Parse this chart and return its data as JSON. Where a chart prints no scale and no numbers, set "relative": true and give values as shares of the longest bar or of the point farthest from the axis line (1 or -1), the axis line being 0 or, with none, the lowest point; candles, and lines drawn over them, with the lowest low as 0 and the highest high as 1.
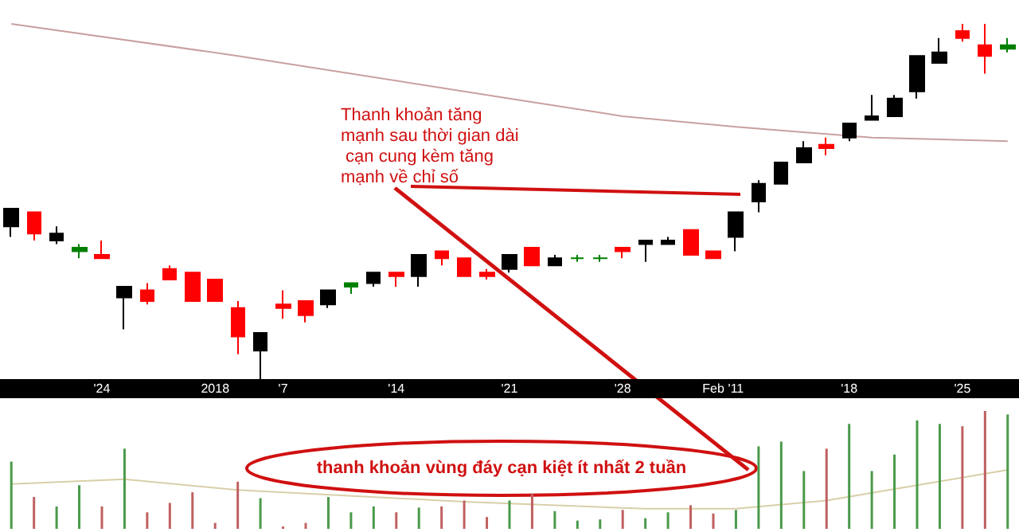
{
  "chart_data": [
    {
      "type": "candlestick",
      "relative": true,
      "tick_labels": "x",
      "grid": false,
      "categories": [
        null,
        null,
        null,
        null,
        "'24",
        null,
        null,
        null,
        null,
        "2018",
        null,
        null,
        "'7",
        null,
        null,
        null,
        null,
        "'14",
        null,
        null,
        null,
        null,
        "'21",
        null,
        null,
        null,
        null,
        "'28",
        null,
        null,
        null,
        "Feb",
        "'11",
        null,
        null,
        null,
        null,
        "'18",
        null,
        null,
        null,
        null,
        "'25",
        null,
        null
      ],
      "ohlc": [
        [
          0.43,
          0.48,
          0.4,
          0.48
        ],
        [
          0.47,
          0.47,
          0.39,
          0.41
        ],
        [
          0.39,
          0.43,
          0.38,
          0.41
        ],
        [
          0.36,
          0.38,
          0.34,
          0.37
        ],
        [
          0.35,
          0.39,
          0.34,
          0.34
        ],
        [
          0.23,
          0.26,
          0.14,
          0.26
        ],
        [
          0.25,
          0.27,
          0.21,
          0.22
        ],
        [
          0.31,
          0.32,
          0.28,
          0.28
        ],
        [
          0.3,
          0.3,
          0.22,
          0.22
        ],
        [
          0.28,
          0.28,
          0.22,
          0.22
        ],
        [
          0.2,
          0.22,
          0.07,
          0.12
        ],
        [
          0.08,
          0.13,
          0,
          0.13
        ],
        [
          0.21,
          0.25,
          0.17,
          0.2
        ],
        [
          0.22,
          0.22,
          0.16,
          0.18
        ],
        [
          0.21,
          0.25,
          0.2,
          0.25
        ],
        [
          0.26,
          0.27,
          0.24,
          0.27
        ],
        [
          0.27,
          0.3,
          0.26,
          0.3
        ],
        [
          0.3,
          0.3,
          0.26,
          0.29
        ],
        [
          0.29,
          0.35,
          0.26,
          0.35
        ],
        [
          0.36,
          0.36,
          0.32,
          0.34
        ],
        [
          0.34,
          0.34,
          0.29,
          0.29
        ],
        [
          0.3,
          0.31,
          0.28,
          0.29
        ],
        [
          0.31,
          0.35,
          0.3,
          0.35
        ],
        [
          0.37,
          0.37,
          0.32,
          0.32
        ],
        [
          0.32,
          0.35,
          0.32,
          0.34
        ],
        [
          0.34,
          0.35,
          0.33,
          0.34
        ],
        [
          0.34,
          0.35,
          0.33,
          0.34
        ],
        [
          0.37,
          0.37,
          0.34,
          0.36
        ],
        [
          0.38,
          0.39,
          0.33,
          0.39
        ],
        [
          0.38,
          0.4,
          0.38,
          0.39
        ],
        [
          0.42,
          0.42,
          0.35,
          0.35
        ],
        [
          0.36,
          0.36,
          0.34,
          0.34
        ],
        [
          0.4,
          0.47,
          0.36,
          0.47
        ],
        [
          0.5,
          0.56,
          0.47,
          0.55
        ],
        [
          0.55,
          0.61,
          0.55,
          0.61
        ],
        [
          0.61,
          0.67,
          0.61,
          0.65
        ],
        [
          0.66,
          0.68,
          0.63,
          0.65
        ],
        [
          0.68,
          0.72,
          0.67,
          0.72
        ],
        [
          0.73,
          0.8,
          0.73,
          0.74
        ],
        [
          0.74,
          0.8,
          0.74,
          0.79
        ],
        [
          0.81,
          0.91,
          0.79,
          0.91
        ],
        [
          0.89,
          0.96,
          0.89,
          0.92
        ],
        [
          0.98,
          1,
          0.95,
          0.96
        ],
        [
          0.94,
          1,
          0.86,
          0.91
        ],
        [
          0.93,
          0.96,
          0.92,
          0.94
        ]
      ],
      "colors": [
        "#000000",
        "#ff0000",
        "#000000",
        "#008000",
        "#ff0000",
        "#000000",
        "#ff0000",
        "#ff0000",
        "#ff0000",
        "#ff0000",
        "#ff0000",
        "#000000",
        "#ff0000",
        "#ff0000",
        "#000000",
        "#008000",
        "#000000",
        "#ff0000",
        "#000000",
        "#ff0000",
        "#ff0000",
        "#ff0000",
        "#000000",
        "#ff0000",
        "#000000",
        "#008000",
        "#008000",
        "#ff0000",
        "#000000",
        "#000000",
        "#ff0000",
        "#ff0000",
        "#000000",
        "#000000",
        "#000000",
        "#000000",
        "#ff0000",
        "#000000",
        "#000000",
        "#000000",
        "#000000",
        "#000000",
        "#ff0000",
        "#ff0000",
        "#008000"
      ],
      "series": [
        {
          "type": "line",
          "color": "#c9a0a0",
          "values": [
            1.0,
            null,
            null,
            null,
            null,
            null,
            null,
            null,
            null,
            null,
            0.91,
            null,
            null,
            null,
            null,
            null,
            null,
            null,
            null,
            null,
            null,
            null,
            0.79,
            null,
            null,
            null,
            null,
            0.74,
            null,
            null,
            null,
            null,
            0.71,
            null,
            null,
            null,
            null,
            null,
            0.68,
            null,
            null,
            null,
            null,
            null,
            0.67
          ]
        }
      ],
      "annotations": [
        "Thanh khoản tăng mạnh sau thời gian dài cạn cung kèm tăng mạnh về chỉ số"
      ]
    },
    {
      "type": "bar",
      "relative": true,
      "tick_labels": false,
      "grid": false,
      "categories": [
        null,
        null,
        null,
        null,
        null,
        null,
        null,
        null,
        null,
        null,
        null,
        null,
        null,
        null,
        null,
        null,
        null,
        null,
        null,
        null,
        null,
        null,
        null,
        null,
        null,
        null,
        null,
        null,
        null,
        null,
        null,
        null,
        null,
        null,
        null,
        null,
        null,
        null,
        null,
        null,
        null,
        null,
        null,
        null,
        null
      ],
      "values": [
        0.57,
        0.27,
        0.19,
        0.37,
        0.19,
        0.68,
        0.14,
        0.22,
        0.31,
        0.05,
        0.4,
        0.26,
        0.02,
        0.05,
        0.27,
        0.14,
        0.19,
        0.14,
        0.18,
        0.19,
        0.24,
        0.1,
        0.24,
        0.3,
        0.15,
        0.07,
        0.08,
        0.16,
        0.09,
        0.14,
        0.2,
        0.13,
        0.16,
        0.7,
        0.74,
        0.49,
        0.68,
        0.89,
        0.49,
        0.63,
        0.92,
        0.89,
        0.87,
        1.0,
        0.97
      ],
      "colors": [
        "#4a9a4a",
        "#c06060",
        "#4a9a4a",
        "#4a9a4a",
        "#c06060",
        "#4a9a4a",
        "#c06060",
        "#c06060",
        "#c06060",
        "#c06060",
        "#c06060",
        "#4a9a4a",
        "#c06060",
        "#c06060",
        "#4a9a4a",
        "#4a9a4a",
        "#4a9a4a",
        "#c06060",
        "#4a9a4a",
        "#c06060",
        "#c06060",
        "#c06060",
        "#4a9a4a",
        "#c06060",
        "#4a9a4a",
        "#4a9a4a",
        "#4a9a4a",
        "#c06060",
        "#4a9a4a",
        "#4a9a4a",
        "#c06060",
        "#c06060",
        "#4a9a4a",
        "#4a9a4a",
        "#4a9a4a",
        "#4a9a4a",
        "#c06060",
        "#4a9a4a",
        "#4a9a4a",
        "#4a9a4a",
        "#4a9a4a",
        "#4a9a4a",
        "#c06060",
        "#c06060",
        "#4a9a4a"
      ],
      "series": [
        {
          "type": "line",
          "color": "#d8cfa8",
          "values": [
            0.38,
            null,
            null,
            null,
            null,
            0.42,
            null,
            null,
            null,
            null,
            0.33,
            null,
            null,
            null,
            null,
            null,
            null,
            null,
            null,
            null,
            0.23,
            null,
            null,
            null,
            null,
            null,
            null,
            null,
            0.17,
            null,
            null,
            null,
            0.17,
            null,
            null,
            null,
            0.24,
            null,
            null,
            null,
            0.37,
            null,
            null,
            null,
            0.5
          ]
        }
      ],
      "annotations": [
        "thanh khoản vùng đáy cạn kiệt ít nhất 2 tuần"
      ]
    }
  ]
}
